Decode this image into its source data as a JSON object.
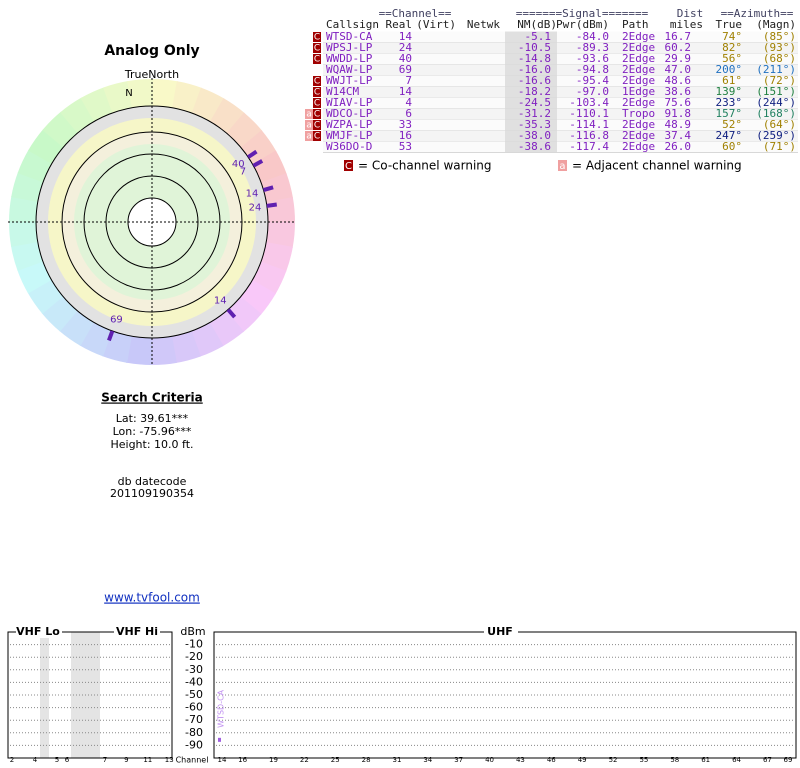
{
  "polar": {
    "title": "Analog Only",
    "north_label": "TrueNorth",
    "n": "N",
    "markers": [
      {
        "label": "14",
        "azimuth": 74
      },
      {
        "label": "24",
        "azimuth": 82
      },
      {
        "label": "40",
        "azimuth": 56
      },
      {
        "label": "69",
        "azimuth": 200
      },
      {
        "label": "7",
        "azimuth": 61
      },
      {
        "label": "14",
        "azimuth": 139
      }
    ]
  },
  "table": {
    "group_headers": [
      "==Channel==",
      "=======Signal=======",
      "Dist",
      "==Azimuth=="
    ],
    "headers": [
      "Callsign",
      "Real",
      "(Virt)",
      "Netwk",
      "NM(dB)",
      "Pwr(dBm)",
      "Path",
      "miles",
      "True",
      "(Magn)"
    ],
    "rows": [
      {
        "flags": [
          "C"
        ],
        "callsign": "WTSD-CA",
        "real": "14",
        "nm": "-5.1",
        "pwr": "-84.0",
        "path": "2Edge",
        "dist": "16.7",
        "true": "74°",
        "magn": "(85°)",
        "az_color": "#a08000"
      },
      {
        "flags": [
          "C"
        ],
        "callsign": "WPSJ-LP",
        "real": "24",
        "nm": "-10.5",
        "pwr": "-89.3",
        "path": "2Edge",
        "dist": "60.2",
        "true": "82°",
        "magn": "(93°)",
        "az_color": "#a08000"
      },
      {
        "flags": [
          "C"
        ],
        "callsign": "WWDD-LP",
        "real": "40",
        "nm": "-14.8",
        "pwr": "-93.6",
        "path": "2Edge",
        "dist": "29.9",
        "true": "56°",
        "magn": "(68°)",
        "az_color": "#a08000"
      },
      {
        "flags": [],
        "callsign": "WQAW-LP",
        "real": "69",
        "nm": "-16.0",
        "pwr": "-94.8",
        "path": "2Edge",
        "dist": "47.0",
        "true": "200°",
        "magn": "(211°)",
        "az_color": "#1e6fc0"
      },
      {
        "flags": [
          "C"
        ],
        "callsign": "WWJT-LP",
        "real": "7",
        "nm": "-16.6",
        "pwr": "-95.4",
        "path": "2Edge",
        "dist": "48.6",
        "true": "61°",
        "magn": "(72°)",
        "az_color": "#a08000"
      },
      {
        "flags": [
          "C"
        ],
        "callsign": "W14CM",
        "real": "14",
        "nm": "-18.2",
        "pwr": "-97.0",
        "path": "1Edge",
        "dist": "38.6",
        "true": "139°",
        "magn": "(151°)",
        "az_color": "#208040"
      },
      {
        "flags": [
          "C"
        ],
        "callsign": "WIAV-LP",
        "real": "4",
        "nm": "-24.5",
        "pwr": "-103.4",
        "path": "2Edge",
        "dist": "75.6",
        "true": "233°",
        "magn": "(244°)",
        "az_color": "#102080"
      },
      {
        "flags": [
          "a",
          "C"
        ],
        "callsign": "WDCO-LP",
        "real": "6",
        "nm": "-31.2",
        "pwr": "-110.1",
        "path": "Tropo",
        "dist": "91.8",
        "true": "157°",
        "magn": "(168°)",
        "az_color": "#208060"
      },
      {
        "flags": [
          "a",
          "C"
        ],
        "callsign": "WZPA-LP",
        "real": "33",
        "nm": "-35.3",
        "pwr": "-114.1",
        "path": "2Edge",
        "dist": "48.9",
        "true": "52°",
        "magn": "(64°)",
        "az_color": "#a08000"
      },
      {
        "flags": [
          "a",
          "C"
        ],
        "callsign": "WMJF-LP",
        "real": "16",
        "nm": "-38.0",
        "pwr": "-116.8",
        "path": "2Edge",
        "dist": "37.4",
        "true": "247°",
        "magn": "(259°)",
        "az_color": "#102080"
      },
      {
        "flags": [],
        "callsign": "W36DO-D",
        "real": "53",
        "nm": "-38.6",
        "pwr": "-117.4",
        "path": "2Edge",
        "dist": "26.0",
        "true": "60°",
        "magn": "(71°)",
        "az_color": "#a08000"
      }
    ]
  },
  "legend": {
    "co_flag": "C",
    "co_text": "= Co-channel warning",
    "adj_flag": "a",
    "adj_text": "= Adjacent channel warning"
  },
  "criteria": {
    "title": "Search Criteria",
    "lat": "Lat: 39.61***",
    "lon": "Lon: -75.96***",
    "height": "Height: 10.0 ft.",
    "datecode_label": "db datecode",
    "datecode": "201109190354"
  },
  "link": "www.tvfool.com",
  "spectrum": {
    "vhf_lo": "VHF Lo",
    "vhf_hi": "VHF Hi",
    "unit": "dBm",
    "uhf": "UHF",
    "x_label": "Channel",
    "ylim": [
      0,
      -100
    ],
    "yticks": [
      -10,
      -20,
      -30,
      -40,
      -50,
      -60,
      -70,
      -80,
      -90
    ],
    "vhf_ticks": [
      2,
      4,
      5,
      6,
      7,
      9,
      11,
      13
    ],
    "uhf_ticks": [
      14,
      16,
      19,
      22,
      25,
      28,
      31,
      34,
      37,
      40,
      43,
      46,
      49,
      52,
      55,
      58,
      61,
      64,
      67,
      69
    ],
    "stations": [
      {
        "name": "WTSD-CA",
        "channel": 14,
        "value": -84
      }
    ]
  }
}
